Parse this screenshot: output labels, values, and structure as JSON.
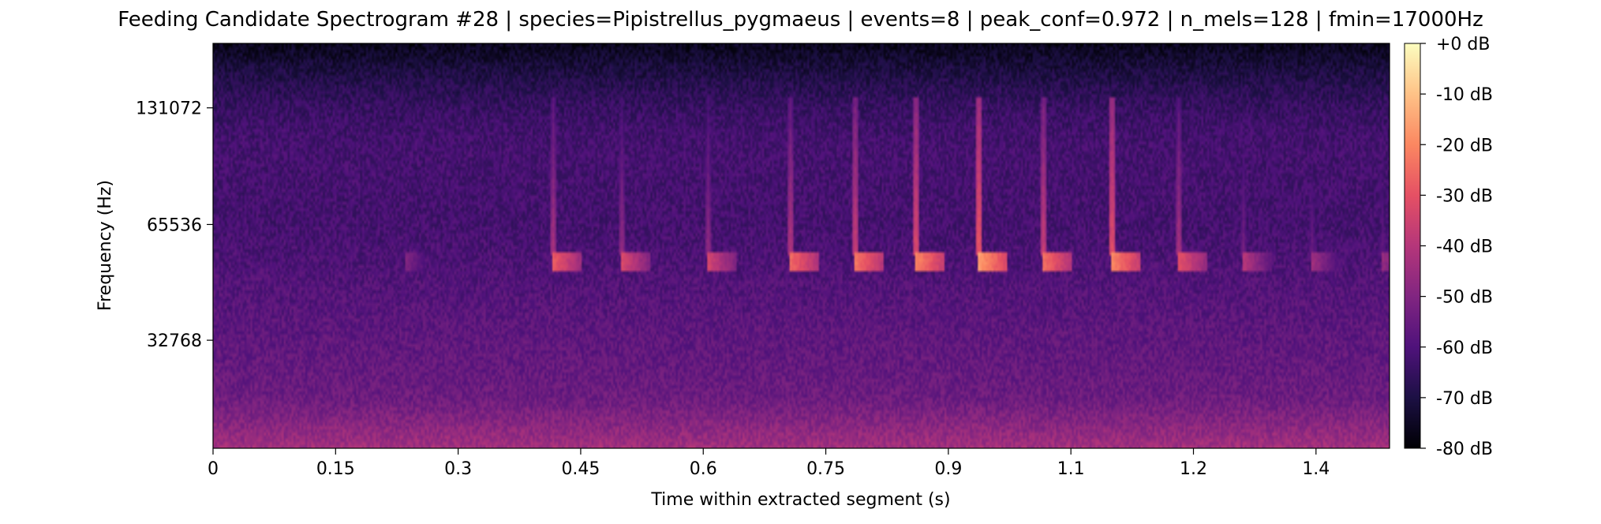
{
  "chart_data": {
    "type": "heatmap",
    "title": "Feeding Candidate Spectrogram #28 | species=Pipistrellus_pygmaeus | events=8 | peak_conf=0.972 | n_mels=128 | fmin=17000Hz",
    "xlabel": "Time within extracted segment (s)",
    "ylabel": "Frequency (Hz)",
    "x_ticks": [
      0,
      0.15,
      0.3,
      0.45,
      0.6,
      0.75,
      0.9,
      1.05,
      1.2,
      1.35
    ],
    "x_tick_labels": [
      "0",
      "0.15",
      "0.3",
      "0.45",
      "0.6",
      "0.75",
      "0.9",
      "1.1",
      "1.2",
      "1.4"
    ],
    "xlim": [
      0,
      1.44
    ],
    "y_scale": "mel",
    "y_ticks": [
      131072,
      65536,
      32768
    ],
    "y_tick_labels": [
      "131072",
      "65536",
      "32768"
    ],
    "ylim": [
      17000,
      192000
    ],
    "colormap": "magma",
    "colorbar": {
      "ticks": [
        0,
        -10,
        -20,
        -30,
        -40,
        -50,
        -60,
        -70,
        -80
      ],
      "labels": [
        "+0 dB",
        "-10 dB",
        "-20 dB",
        "-30 dB",
        "-40 dB",
        "-50 dB",
        "-60 dB",
        "-70 dB",
        "-80 dB"
      ],
      "range_db": [
        -80,
        0
      ]
    },
    "calls": [
      {
        "t": 0.235,
        "peak_db": -50,
        "sweep_db": -58
      },
      {
        "t": 0.415,
        "peak_db": -28,
        "sweep_db": -42
      },
      {
        "t": 0.5,
        "peak_db": -33,
        "sweep_db": -46
      },
      {
        "t": 0.605,
        "peak_db": -34,
        "sweep_db": -46
      },
      {
        "t": 0.705,
        "peak_db": -25,
        "sweep_db": -40
      },
      {
        "t": 0.785,
        "peak_db": -23,
        "sweep_db": -36
      },
      {
        "t": 0.86,
        "peak_db": -20,
        "sweep_db": -32
      },
      {
        "t": 0.935,
        "peak_db": -16,
        "sweep_db": -28
      },
      {
        "t": 1.015,
        "peak_db": -24,
        "sweep_db": -36
      },
      {
        "t": 1.1,
        "peak_db": -20,
        "sweep_db": -30
      },
      {
        "t": 1.18,
        "peak_db": -30,
        "sweep_db": -42
      },
      {
        "t": 1.26,
        "peak_db": -40,
        "sweep_db": -52
      },
      {
        "t": 1.345,
        "peak_db": -44,
        "sweep_db": -54
      },
      {
        "t": 1.43,
        "peak_db": -46,
        "sweep_db": -56
      }
    ]
  }
}
